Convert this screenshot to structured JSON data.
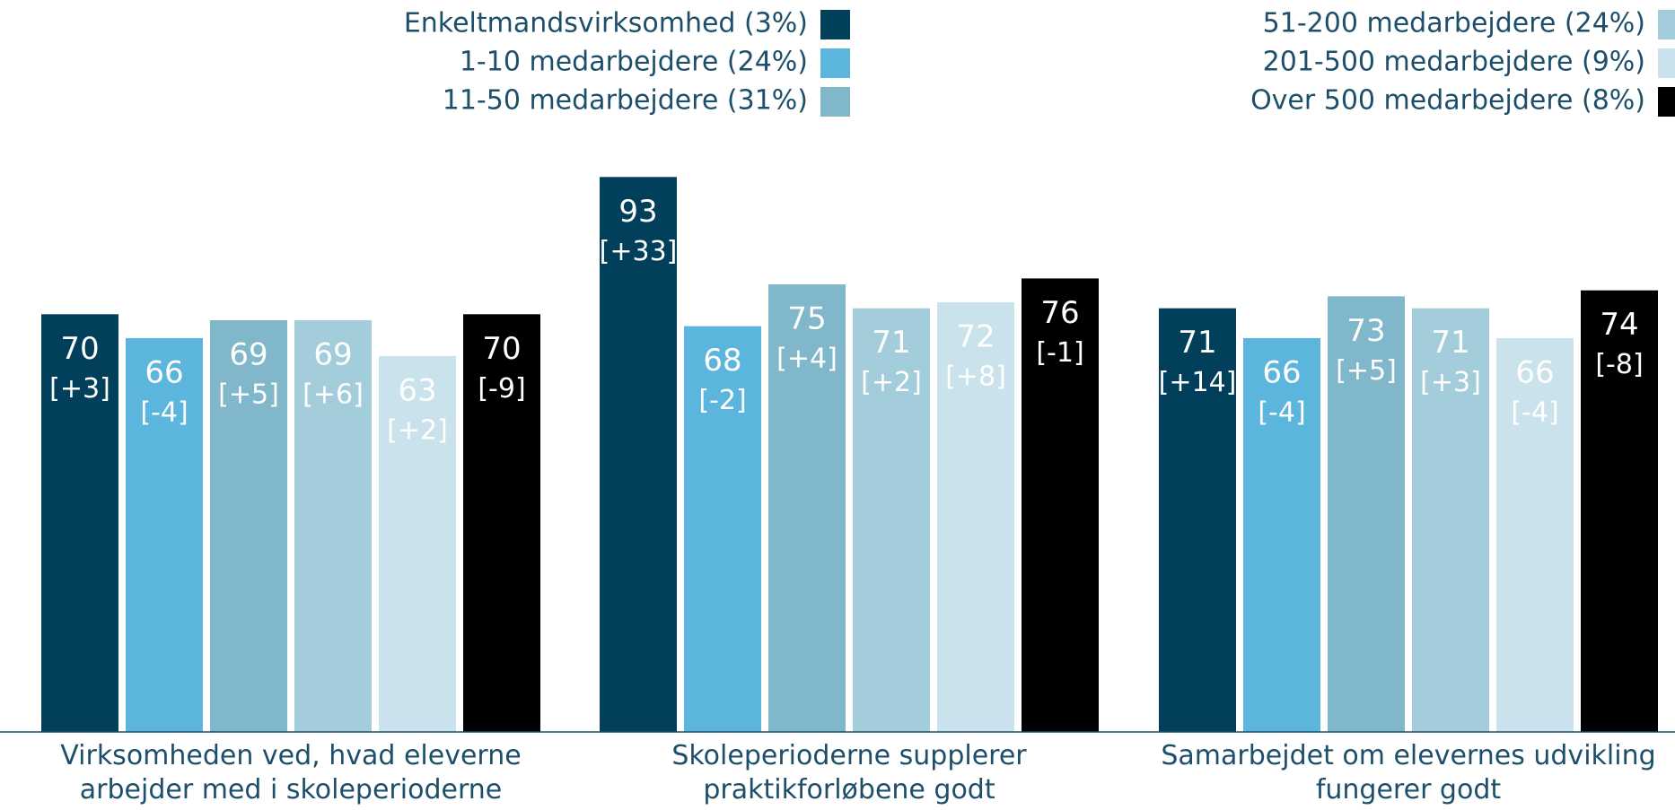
{
  "chart_data": {
    "type": "bar",
    "categories": [
      "Virksomheden ved, hvad eleverne arbejder med i skoleperioderne",
      "Skoleperioderne supplerer praktikforløbene godt",
      "Samarbejdet om elevernes udvikling fungerer godt"
    ],
    "series": [
      {
        "name": "Enkeltmandsvirksomhed (3%)",
        "color": "#023f5a",
        "values": [
          70,
          93,
          71
        ],
        "change_labels": [
          "[+3]",
          "[+33]",
          "[+14]"
        ]
      },
      {
        "name": "1-10 medarbejdere (24%)",
        "color": "#5bb5dc",
        "values": [
          66,
          68,
          66
        ],
        "change_labels": [
          "[-4]",
          "[-2]",
          "[-4]"
        ]
      },
      {
        "name": "11-50 medarbejdere (31%)",
        "color": "#80b7ca",
        "values": [
          69,
          75,
          73
        ],
        "change_labels": [
          "[+5]",
          "[+4]",
          "[+5]"
        ]
      },
      {
        "name": "51-200 medarbejdere (24%)",
        "color": "#a4cddb",
        "values": [
          69,
          71,
          71
        ],
        "change_labels": [
          "[+6]",
          "[+2]",
          "[+3]"
        ]
      },
      {
        "name": "201-500 medarbejdere (9%)",
        "color": "#c9e2eb",
        "values": [
          63,
          72,
          66
        ],
        "change_labels": [
          "[+2]",
          "[+8]",
          "[-4]"
        ]
      },
      {
        "name": "Over 500 medarbejdere (8%)",
        "color": "#000000",
        "values": [
          70,
          76,
          74
        ],
        "change_labels": [
          "[-9]",
          "[-1]",
          "[-8]"
        ]
      }
    ],
    "ylim": [
      0,
      95
    ],
    "grid": false
  }
}
